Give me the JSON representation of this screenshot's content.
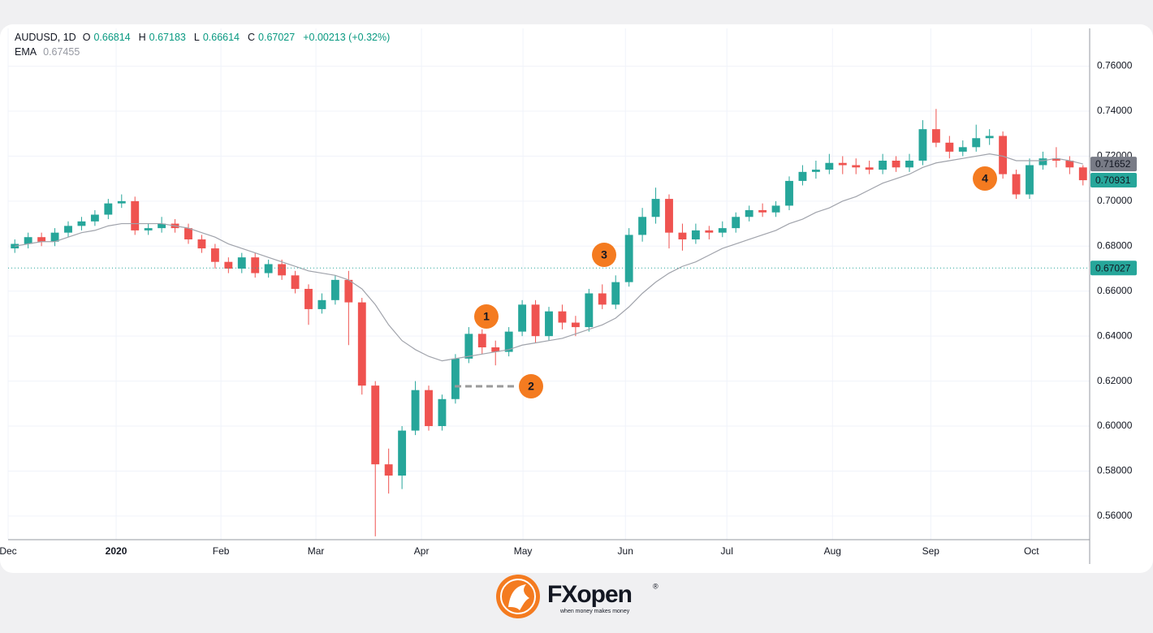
{
  "chart_data": {
    "type": "candlestick",
    "symbol": "AUDUSD, 1D",
    "ohlc_header": {
      "o_label": "O",
      "o": 0.66814,
      "h_label": "H",
      "h": 0.67183,
      "l_label": "L",
      "l": 0.66614,
      "c_label": "C",
      "c": 0.67027,
      "change": "+0.00213 (+0.32%)"
    },
    "ema_header": {
      "name": "EMA",
      "value": 0.67455
    },
    "categories": [
      null,
      null,
      null,
      null,
      null,
      null,
      null,
      null,
      null,
      null,
      null,
      null,
      null,
      null,
      null,
      null,
      null,
      null,
      null,
      null,
      null,
      null,
      null,
      null,
      null,
      null,
      null,
      null,
      null,
      null,
      null,
      null,
      null,
      null,
      null,
      null,
      null,
      null,
      null,
      null,
      null,
      null,
      null,
      null,
      null,
      null,
      null,
      null,
      null,
      null,
      null,
      null,
      null,
      null,
      null,
      null,
      null,
      null,
      null,
      null,
      null,
      null,
      null,
      null,
      null,
      null,
      null,
      null,
      null,
      null,
      null,
      null,
      null,
      null,
      null,
      null,
      null,
      null,
      null,
      null,
      null
    ],
    "open": [
      0.679,
      0.681,
      0.684,
      0.682,
      0.686,
      0.689,
      0.691,
      0.694,
      0.699,
      0.7,
      0.687,
      0.688,
      0.69,
      0.688,
      0.683,
      0.679,
      0.673,
      0.67,
      0.675,
      0.668,
      0.672,
      0.667,
      0.661,
      0.652,
      0.656,
      0.665,
      0.655,
      0.618,
      0.583,
      0.578,
      0.598,
      0.616,
      0.6,
      0.612,
      0.63,
      0.641,
      0.635,
      0.633,
      0.642,
      0.654,
      0.64,
      0.651,
      0.646,
      0.644,
      0.659,
      0.654,
      0.664,
      0.685,
      0.693,
      0.701,
      0.686,
      0.683,
      0.687,
      0.686,
      0.688,
      0.693,
      0.696,
      0.695,
      0.698,
      0.709,
      0.713,
      0.714,
      0.717,
      0.716,
      0.715,
      0.714,
      0.718,
      0.715,
      0.718,
      0.732,
      0.726,
      0.722,
      0.724,
      0.728,
      0.729,
      0.712,
      0.703,
      0.716,
      0.719,
      0.718,
      0.715
    ],
    "high": [
      0.683,
      0.686,
      0.686,
      0.688,
      0.691,
      0.693,
      0.696,
      0.701,
      0.703,
      0.702,
      0.69,
      0.693,
      0.692,
      0.69,
      0.685,
      0.681,
      0.675,
      0.677,
      0.677,
      0.674,
      0.674,
      0.669,
      0.663,
      0.659,
      0.667,
      0.669,
      0.657,
      0.62,
      0.59,
      0.6,
      0.62,
      0.618,
      0.614,
      0.632,
      0.644,
      0.643,
      0.638,
      0.644,
      0.656,
      0.656,
      0.653,
      0.654,
      0.649,
      0.661,
      0.663,
      0.667,
      0.688,
      0.697,
      0.706,
      0.703,
      0.69,
      0.69,
      0.689,
      0.691,
      0.695,
      0.698,
      0.699,
      0.7,
      0.711,
      0.716,
      0.718,
      0.721,
      0.72,
      0.719,
      0.718,
      0.721,
      0.72,
      0.721,
      0.736,
      0.741,
      0.729,
      0.727,
      0.734,
      0.732,
      0.731,
      0.714,
      0.719,
      0.722,
      0.724,
      0.72,
      0.716
    ],
    "low": [
      0.677,
      0.679,
      0.68,
      0.68,
      0.684,
      0.687,
      0.689,
      0.692,
      0.697,
      0.685,
      0.685,
      0.686,
      0.686,
      0.681,
      0.677,
      0.67,
      0.668,
      0.668,
      0.666,
      0.666,
      0.665,
      0.659,
      0.645,
      0.65,
      0.654,
      0.636,
      0.614,
      0.551,
      0.57,
      0.572,
      0.596,
      0.598,
      0.598,
      0.61,
      0.628,
      0.632,
      0.627,
      0.631,
      0.64,
      0.637,
      0.638,
      0.643,
      0.64,
      0.642,
      0.652,
      0.652,
      0.662,
      0.682,
      0.69,
      0.679,
      0.678,
      0.681,
      0.683,
      0.684,
      0.686,
      0.691,
      0.693,
      0.693,
      0.696,
      0.707,
      0.71,
      0.712,
      0.712,
      0.712,
      0.712,
      0.712,
      0.713,
      0.713,
      0.716,
      0.724,
      0.719,
      0.72,
      0.722,
      0.725,
      0.71,
      0.701,
      0.701,
      0.714,
      0.715,
      0.712,
      0.707
    ],
    "close": [
      0.681,
      0.684,
      0.682,
      0.686,
      0.689,
      0.691,
      0.694,
      0.699,
      0.7,
      0.687,
      0.688,
      0.69,
      0.688,
      0.683,
      0.679,
      0.673,
      0.67,
      0.675,
      0.668,
      0.672,
      0.667,
      0.661,
      0.652,
      0.656,
      0.665,
      0.655,
      0.618,
      0.583,
      0.578,
      0.598,
      0.616,
      0.6,
      0.612,
      0.63,
      0.641,
      0.635,
      0.633,
      0.642,
      0.654,
      0.64,
      0.651,
      0.646,
      0.644,
      0.659,
      0.654,
      0.664,
      0.685,
      0.693,
      0.701,
      0.686,
      0.683,
      0.687,
      0.686,
      0.688,
      0.693,
      0.696,
      0.695,
      0.698,
      0.709,
      0.713,
      0.714,
      0.717,
      0.716,
      0.715,
      0.714,
      0.718,
      0.715,
      0.718,
      0.732,
      0.726,
      0.722,
      0.724,
      0.728,
      0.729,
      0.712,
      0.703,
      0.716,
      0.719,
      0.718,
      0.715,
      0.70931
    ],
    "up_color": "#26a69a",
    "down_color": "#ef5350",
    "ema": {
      "color": "#a0a3ab",
      "values": [
        0.68,
        0.681,
        0.682,
        0.682,
        0.684,
        0.686,
        0.687,
        0.689,
        0.69,
        0.69,
        0.69,
        0.69,
        0.689,
        0.688,
        0.686,
        0.684,
        0.681,
        0.679,
        0.677,
        0.675,
        0.673,
        0.671,
        0.669,
        0.668,
        0.667,
        0.665,
        0.661,
        0.654,
        0.645,
        0.638,
        0.634,
        0.631,
        0.629,
        0.63,
        0.631,
        0.632,
        0.633,
        0.634,
        0.636,
        0.637,
        0.638,
        0.639,
        0.641,
        0.643,
        0.645,
        0.648,
        0.653,
        0.659,
        0.664,
        0.668,
        0.671,
        0.673,
        0.676,
        0.679,
        0.681,
        0.683,
        0.685,
        0.687,
        0.69,
        0.692,
        0.695,
        0.697,
        0.7,
        0.702,
        0.705,
        0.708,
        0.71,
        0.712,
        0.715,
        0.717,
        0.718,
        0.719,
        0.72,
        0.721,
        0.72,
        0.718,
        0.718,
        0.718,
        0.719,
        0.718,
        0.71652
      ]
    },
    "xlim": [
      -0.5,
      80.5
    ],
    "xticks": [
      {
        "value": -0.5,
        "label": "Dec"
      },
      {
        "value": 7.59,
        "label": "2020",
        "bold": true
      },
      {
        "value": 15.44,
        "label": "Feb"
      },
      {
        "value": 22.55,
        "label": "Mar"
      },
      {
        "value": 30.46,
        "label": "Apr"
      },
      {
        "value": 38.06,
        "label": "May"
      },
      {
        "value": 45.73,
        "label": "Jun"
      },
      {
        "value": 53.33,
        "label": "Jul"
      },
      {
        "value": 61.24,
        "label": "Aug"
      },
      {
        "value": 68.6,
        "label": "Sep"
      },
      {
        "value": 76.14,
        "label": "Oct"
      }
    ],
    "ylim": [
      0.5495,
      0.7768
    ],
    "yticks": [
      {
        "value": 0.56,
        "label": "0.56000"
      },
      {
        "value": 0.58,
        "label": "0.58000"
      },
      {
        "value": 0.6,
        "label": "0.60000"
      },
      {
        "value": 0.62,
        "label": "0.62000"
      },
      {
        "value": 0.64,
        "label": "0.64000"
      },
      {
        "value": 0.66,
        "label": "0.66000"
      },
      {
        "value": 0.68,
        "label": "0.68000"
      },
      {
        "value": 0.7,
        "label": "0.70000"
      },
      {
        "value": 0.72,
        "label": "0.72000"
      },
      {
        "value": 0.74,
        "label": "0.74000"
      },
      {
        "value": 0.76,
        "label": "0.76000"
      }
    ],
    "grid": true,
    "price_tags": [
      {
        "value": 0.71652,
        "color": "#787b86"
      },
      {
        "value": 0.70931,
        "color": "#26a69a"
      },
      {
        "value": 0.67027,
        "color": "#26a69a",
        "line": true
      }
    ],
    "annotations": [
      {
        "label": "1"
      },
      {
        "label": "2"
      },
      {
        "label": "3"
      },
      {
        "label": "4"
      }
    ],
    "annotation_color": "#f47b20"
  },
  "logo": {
    "brand": "FXopen",
    "registered": "®",
    "tagline": "when money makes money"
  }
}
